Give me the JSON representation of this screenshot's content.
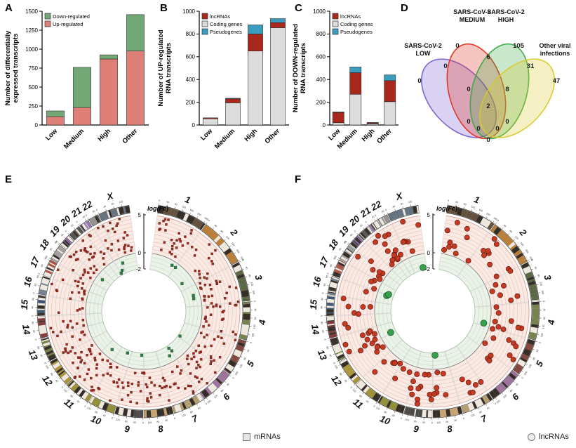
{
  "figure": {
    "panel_letters": [
      "A",
      "B",
      "C",
      "D",
      "E",
      "F"
    ]
  },
  "chart_data": [
    {
      "id": "A",
      "type": "bar",
      "stacked": true,
      "ylabel_lines": [
        "Number of differentially",
        "expressed transcripts"
      ],
      "categories": [
        "Low",
        "Medium",
        "High",
        "Other"
      ],
      "series": [
        {
          "name": "Up-regulated",
          "color": "#de7f78",
          "values": [
            110,
            230,
            870,
            975
          ]
        },
        {
          "name": "Down-regulated",
          "color": "#71a876",
          "values": [
            75,
            530,
            55,
            480
          ]
        }
      ],
      "legend_order": [
        "Down-regulated",
        "Up-regulated"
      ],
      "ylim": [
        0,
        1500
      ],
      "yticks": [
        0,
        250,
        500,
        750,
        1000,
        1250,
        1500
      ]
    },
    {
      "id": "B",
      "type": "bar",
      "stacked": true,
      "ylabel_lines": [
        "Number of UP-regulated",
        "RNA transcripts"
      ],
      "categories": [
        "Low",
        "Medium",
        "High",
        "Other"
      ],
      "series": [
        {
          "name": "Coding genes",
          "color": "#dcdcdc",
          "values": [
            55,
            195,
            650,
            855
          ]
        },
        {
          "name": "lncRNAs",
          "color": "#a8281c",
          "values": [
            8,
            35,
            150,
            45
          ]
        },
        {
          "name": "Pseudogenes",
          "color": "#3a9dc0",
          "values": [
            0,
            5,
            80,
            35
          ]
        }
      ],
      "legend_order": [
        "lncRNAs",
        "Coding genes",
        "Pseudogenes"
      ],
      "ylim": [
        0,
        1000
      ],
      "yticks": [
        0,
        200,
        400,
        600,
        800,
        1000
      ]
    },
    {
      "id": "C",
      "type": "bar",
      "stacked": true,
      "ylabel_lines": [
        "Number of DOWN-regulated",
        "RNA transcripts"
      ],
      "categories": [
        "Low",
        "Medium",
        "High",
        "Other"
      ],
      "series": [
        {
          "name": "Coding genes",
          "color": "#dcdcdc",
          "values": [
            20,
            270,
            10,
            205
          ]
        },
        {
          "name": "lncRNAs",
          "color": "#a8281c",
          "values": [
            90,
            190,
            8,
            185
          ]
        },
        {
          "name": "Pseudogenes",
          "color": "#3a9dc0",
          "values": [
            5,
            50,
            4,
            50
          ]
        }
      ],
      "legend_order": [
        "lncRNAs",
        "Coding genes",
        "Pseudogenes"
      ],
      "ylim": [
        0,
        1000
      ],
      "yticks": [
        0,
        200,
        400,
        600,
        800,
        1000
      ]
    },
    {
      "id": "D",
      "type": "venn4",
      "set_labels": [
        [
          "SARS-CoV-2",
          "LOW"
        ],
        [
          "SARS-CoV-2",
          "MEDIUM"
        ],
        [
          "SARS-CoV-2",
          "HIGH"
        ],
        [
          "Other viral",
          "infections"
        ]
      ],
      "set_colors": [
        "#7a5fd0",
        "#e0301e",
        "#39a845",
        "#d8c92a"
      ],
      "counts": {
        "low": 0,
        "medium": 0,
        "high": 105,
        "other": 47,
        "low_medium": 0,
        "medium_high": 6,
        "high_other": 31,
        "low_high": 0,
        "medium_other": 0,
        "low_other": 0,
        "low_medium_high": 0,
        "medium_high_other": 8,
        "low_medium_other": 0,
        "low_high_other": 0,
        "all": 2
      }
    },
    {
      "id": "E",
      "type": "circos",
      "axis": {
        "label": "log(Fc)",
        "ticks": [
          "5",
          "0",
          "-2"
        ],
        "tick_values": [
          5,
          0,
          -2
        ]
      },
      "legend": {
        "label": "mRNAs",
        "shape": "square"
      },
      "points": {
        "shape": "square",
        "size": 3.0,
        "up_count": 330,
        "down_count": 16,
        "up_color": "#9e2b1e",
        "down_color": "#2e7d44",
        "seed": 42
      }
    },
    {
      "id": "F",
      "type": "circos",
      "axis": {
        "label": "log(Fc)",
        "ticks": [
          "5",
          "0",
          "-2"
        ],
        "tick_values": [
          5,
          0,
          -2
        ]
      },
      "legend": {
        "label": "lncRNAs",
        "shape": "circle"
      },
      "points": {
        "shape": "circle",
        "size": 3.6,
        "up_count": 135,
        "down_count": 6,
        "up_color": "#c63a22",
        "down_color": "#37a04a",
        "seed": 1337
      }
    }
  ],
  "circos_common": {
    "chromosomes": [
      "1",
      "2",
      "3",
      "4",
      "5",
      "6",
      "7",
      "8",
      "9",
      "10",
      "11",
      "12",
      "13",
      "14",
      "15",
      "16",
      "17",
      "18",
      "19",
      "20",
      "21",
      "22",
      "X"
    ],
    "lengths": [
      249,
      243,
      198,
      191,
      181,
      171,
      159,
      146,
      141,
      134,
      135,
      134,
      115,
      107,
      102,
      90,
      83,
      80,
      59,
      63,
      48,
      51,
      155
    ],
    "colors": [
      "#5a4632",
      "#b5772e",
      "#4e5e3a",
      "#6f7a45",
      "#7a3b33",
      "#9a6a9a",
      "#b09a6a",
      "#c2a06a",
      "#3f3f3f",
      "#8a8a2e",
      "#9a8a2e",
      "#a8902e",
      "#6a7a3a",
      "#7a2e2e",
      "#2e4a6a",
      "#6a7a8a",
      "#a84a3a",
      "#9a9a9a",
      "#7a5a9a",
      "#4a4a4a",
      "#8a6aaa",
      "#8a8a8a",
      "#5a6a7a"
    ],
    "tick_step_mb": 40
  }
}
